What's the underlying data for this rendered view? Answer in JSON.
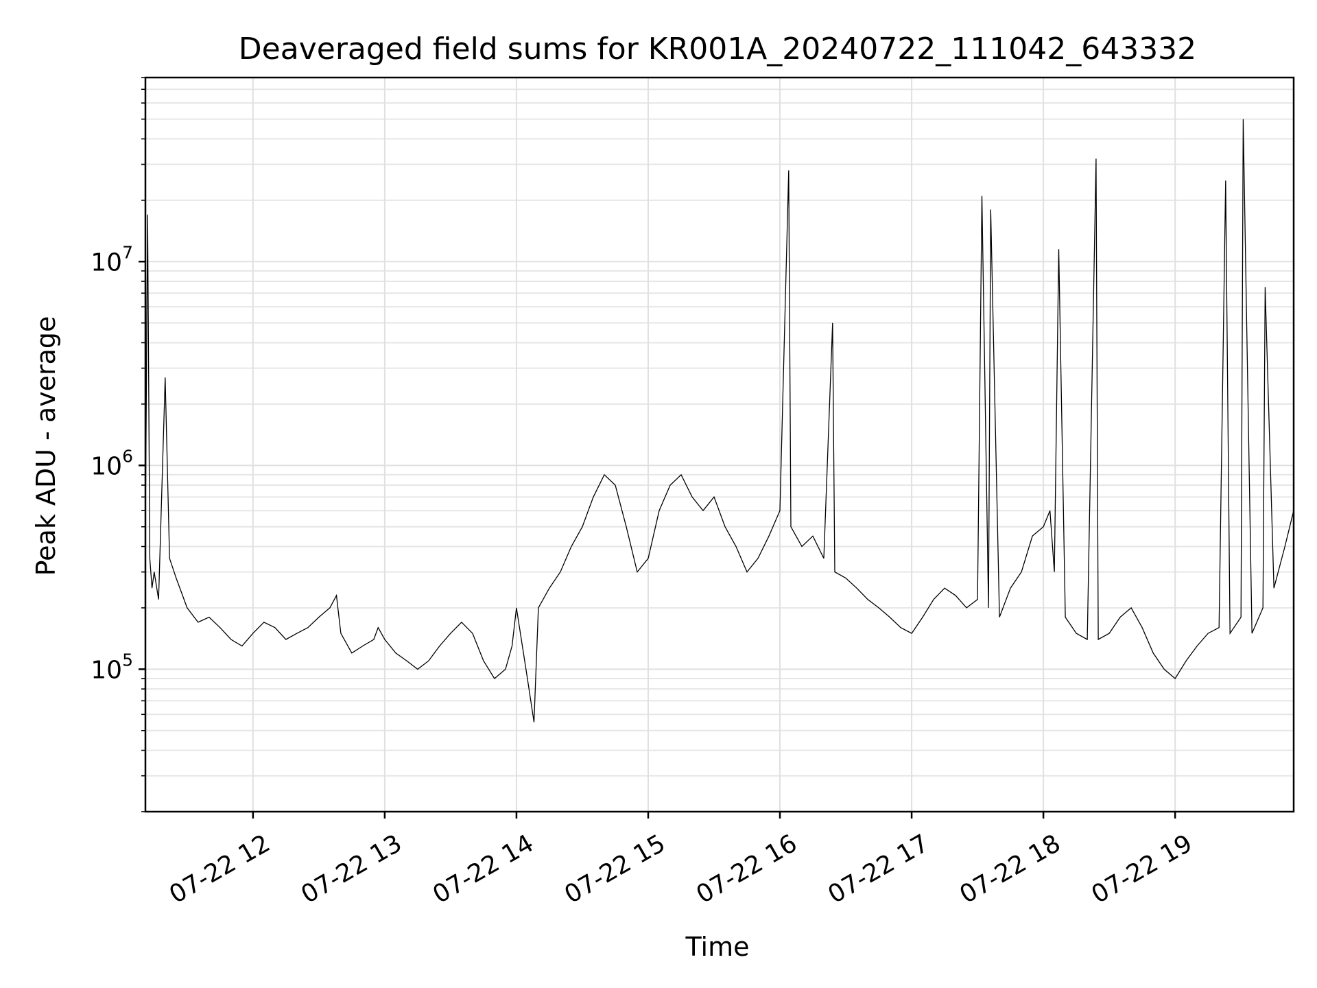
{
  "chart_data": {
    "type": "line",
    "title": "Deaveraged field sums for KR001A_20240722_111042_643332",
    "xlabel": "Time",
    "ylabel": "Peak ADU - average",
    "x_axis_kind": "time",
    "x_range": [
      "2024-07-22T11:11",
      "2024-07-22T19:54"
    ],
    "y_scale": "log",
    "ylim": [
      20000,
      80000000
    ],
    "grid": true,
    "x_ticks": [
      {
        "time": "2024-07-22T12:00",
        "label": "07-22 12"
      },
      {
        "time": "2024-07-22T13:00",
        "label": "07-22 13"
      },
      {
        "time": "2024-07-22T14:00",
        "label": "07-22 14"
      },
      {
        "time": "2024-07-22T15:00",
        "label": "07-22 15"
      },
      {
        "time": "2024-07-22T16:00",
        "label": "07-22 16"
      },
      {
        "time": "2024-07-22T17:00",
        "label": "07-22 17"
      },
      {
        "time": "2024-07-22T18:00",
        "label": "07-22 18"
      },
      {
        "time": "2024-07-22T19:00",
        "label": "07-22 19"
      }
    ],
    "y_ticks": [
      {
        "value": 100000,
        "base": "10",
        "exponent": "5"
      },
      {
        "value": 1000000,
        "base": "10",
        "exponent": "6"
      },
      {
        "value": 10000000,
        "base": "10",
        "exponent": "7"
      }
    ],
    "line_color": "#000000",
    "series": [
      {
        "x": [
          "2024-07-22T11:11",
          "2024-07-22T11:12",
          "2024-07-22T11:13",
          "2024-07-22T11:14",
          "2024-07-22T11:15",
          "2024-07-22T11:17",
          "2024-07-22T11:20",
          "2024-07-22T11:22",
          "2024-07-22T11:25",
          "2024-07-22T11:30",
          "2024-07-22T11:35",
          "2024-07-22T11:40",
          "2024-07-22T11:45",
          "2024-07-22T11:50",
          "2024-07-22T11:55",
          "2024-07-22T12:00",
          "2024-07-22T12:05",
          "2024-07-22T12:10",
          "2024-07-22T12:15",
          "2024-07-22T12:20",
          "2024-07-22T12:25",
          "2024-07-22T12:30",
          "2024-07-22T12:35",
          "2024-07-22T12:38",
          "2024-07-22T12:40",
          "2024-07-22T12:45",
          "2024-07-22T12:50",
          "2024-07-22T12:55",
          "2024-07-22T12:57",
          "2024-07-22T13:00",
          "2024-07-22T13:05",
          "2024-07-22T13:10",
          "2024-07-22T13:15",
          "2024-07-22T13:20",
          "2024-07-22T13:25",
          "2024-07-22T13:30",
          "2024-07-22T13:35",
          "2024-07-22T13:40",
          "2024-07-22T13:45",
          "2024-07-22T13:50",
          "2024-07-22T13:55",
          "2024-07-22T13:58",
          "2024-07-22T14:00",
          "2024-07-22T14:05",
          "2024-07-22T14:08",
          "2024-07-22T14:10",
          "2024-07-22T14:15",
          "2024-07-22T14:20",
          "2024-07-22T14:25",
          "2024-07-22T14:30",
          "2024-07-22T14:35",
          "2024-07-22T14:40",
          "2024-07-22T14:45",
          "2024-07-22T14:50",
          "2024-07-22T14:55",
          "2024-07-22T15:00",
          "2024-07-22T15:05",
          "2024-07-22T15:10",
          "2024-07-22T15:15",
          "2024-07-22T15:20",
          "2024-07-22T15:25",
          "2024-07-22T15:30",
          "2024-07-22T15:35",
          "2024-07-22T15:40",
          "2024-07-22T15:45",
          "2024-07-22T15:50",
          "2024-07-22T15:55",
          "2024-07-22T16:00",
          "2024-07-22T16:04",
          "2024-07-22T16:05",
          "2024-07-22T16:10",
          "2024-07-22T16:15",
          "2024-07-22T16:20",
          "2024-07-22T16:24",
          "2024-07-22T16:25",
          "2024-07-22T16:30",
          "2024-07-22T16:35",
          "2024-07-22T16:40",
          "2024-07-22T16:45",
          "2024-07-22T16:50",
          "2024-07-22T16:55",
          "2024-07-22T17:00",
          "2024-07-22T17:05",
          "2024-07-22T17:10",
          "2024-07-22T17:15",
          "2024-07-22T17:20",
          "2024-07-22T17:25",
          "2024-07-22T17:30",
          "2024-07-22T17:32",
          "2024-07-22T17:35",
          "2024-07-22T17:36",
          "2024-07-22T17:40",
          "2024-07-22T17:45",
          "2024-07-22T17:50",
          "2024-07-22T17:55",
          "2024-07-22T18:00",
          "2024-07-22T18:03",
          "2024-07-22T18:05",
          "2024-07-22T18:07",
          "2024-07-22T18:10",
          "2024-07-22T18:15",
          "2024-07-22T18:20",
          "2024-07-22T18:24",
          "2024-07-22T18:25",
          "2024-07-22T18:30",
          "2024-07-22T18:35",
          "2024-07-22T18:40",
          "2024-07-22T18:45",
          "2024-07-22T18:50",
          "2024-07-22T18:55",
          "2024-07-22T19:00",
          "2024-07-22T19:05",
          "2024-07-22T19:10",
          "2024-07-22T19:15",
          "2024-07-22T19:20",
          "2024-07-22T19:23",
          "2024-07-22T19:25",
          "2024-07-22T19:30",
          "2024-07-22T19:31",
          "2024-07-22T19:35",
          "2024-07-22T19:40",
          "2024-07-22T19:41",
          "2024-07-22T19:45",
          "2024-07-22T19:50",
          "2024-07-22T19:54"
        ],
        "y": [
          500000,
          17000000,
          350000,
          250000,
          300000,
          220000,
          2700000,
          350000,
          280000,
          200000,
          170000,
          180000,
          160000,
          140000,
          130000,
          150000,
          170000,
          160000,
          140000,
          150000,
          160000,
          180000,
          200000,
          230000,
          150000,
          120000,
          130000,
          140000,
          160000,
          140000,
          120000,
          110000,
          100000,
          110000,
          130000,
          150000,
          170000,
          150000,
          110000,
          90000,
          100000,
          130000,
          200000,
          90000,
          55000,
          200000,
          250000,
          300000,
          400000,
          500000,
          700000,
          900000,
          800000,
          500000,
          300000,
          350000,
          600000,
          800000,
          900000,
          700000,
          600000,
          700000,
          500000,
          400000,
          300000,
          350000,
          450000,
          600000,
          28000000,
          500000,
          400000,
          450000,
          350000,
          5000000,
          300000,
          280000,
          250000,
          220000,
          200000,
          180000,
          160000,
          150000,
          180000,
          220000,
          250000,
          230000,
          200000,
          220000,
          21000000,
          200000,
          18000000,
          180000,
          250000,
          300000,
          450000,
          500000,
          600000,
          300000,
          11500000,
          180000,
          150000,
          140000,
          32000000,
          140000,
          150000,
          180000,
          200000,
          160000,
          120000,
          100000,
          90000,
          110000,
          130000,
          150000,
          160000,
          25000000,
          150000,
          180000,
          50000000,
          150000,
          200000,
          7500000,
          250000,
          400000,
          600000
        ]
      }
    ]
  }
}
